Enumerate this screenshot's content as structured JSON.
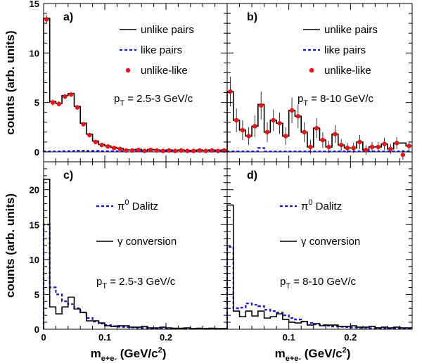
{
  "chart_data": [
    {
      "id": "a",
      "type": "line",
      "panel_label": "a)",
      "pt_label": {
        "main": "p",
        "sub": "T",
        "rest": " = 2.5-3 GeV/c"
      },
      "xlim": [
        0,
        0.3
      ],
      "ylim": [
        -1,
        15
      ],
      "ylabel": "counts (arb. units)",
      "yticks": [
        0,
        5,
        10,
        15
      ],
      "legend": [
        {
          "label": "unlike pairs",
          "style": "solid-black"
        },
        {
          "label": "like pairs",
          "style": "dashed-blue"
        },
        {
          "label": "unlike-like",
          "style": "marker-red"
        }
      ],
      "series": [
        {
          "name": "unlike pairs",
          "style": "solid-black",
          "bin_width": 0.01,
          "x": [
            0.0,
            0.01,
            0.02,
            0.03,
            0.04,
            0.05,
            0.06,
            0.07,
            0.08,
            0.09,
            0.1,
            0.11,
            0.12,
            0.13,
            0.14,
            0.15,
            0.16,
            0.17,
            0.18,
            0.19,
            0.2,
            0.21,
            0.22,
            0.23,
            0.24,
            0.25,
            0.26,
            0.27,
            0.28,
            0.29
          ],
          "y": [
            13.5,
            5.1,
            4.9,
            5.7,
            5.9,
            4.6,
            2.9,
            1.8,
            1.1,
            0.75,
            0.6,
            0.45,
            0.35,
            0.2,
            0.2,
            0.25,
            0.15,
            0.25,
            0.2,
            0.15,
            0.2,
            0.15,
            0.2,
            0.15,
            0.15,
            0.2,
            0.15,
            0.2,
            0.15,
            0.2
          ]
        },
        {
          "name": "like pairs",
          "style": "dashed-blue",
          "bin_width": 0.01,
          "x": [
            0.0,
            0.01,
            0.02,
            0.03,
            0.04,
            0.05,
            0.06,
            0.07,
            0.08,
            0.09,
            0.1,
            0.11,
            0.12,
            0.13,
            0.14,
            0.15,
            0.16,
            0.17,
            0.18,
            0.19,
            0.2,
            0.21,
            0.22,
            0.23,
            0.24,
            0.25,
            0.26,
            0.27,
            0.28,
            0.29
          ],
          "y": [
            0.05,
            0.05,
            0.05,
            0.08,
            0.08,
            0.12,
            0.12,
            0.1,
            0.1,
            0.08,
            0.08,
            0.08,
            0.06,
            0.06,
            0.05,
            0.05,
            0.05,
            0.05,
            0.05,
            0.05,
            0.05,
            0.05,
            0.05,
            0.05,
            0.05,
            0.05,
            0.05,
            0.05,
            0.05,
            0.05
          ]
        },
        {
          "name": "unlike-like",
          "style": "marker-red",
          "x": [
            0.005,
            0.015,
            0.025,
            0.035,
            0.045,
            0.055,
            0.065,
            0.075,
            0.085,
            0.095,
            0.105,
            0.115,
            0.125,
            0.135,
            0.145,
            0.155,
            0.165,
            0.175,
            0.185,
            0.195,
            0.205,
            0.215,
            0.225,
            0.235,
            0.245,
            0.255,
            0.265,
            0.275,
            0.285,
            0.295
          ],
          "y": [
            13.4,
            5.0,
            4.85,
            5.6,
            5.8,
            4.5,
            2.8,
            1.7,
            1.0,
            0.7,
            0.55,
            0.4,
            0.3,
            0.15,
            0.15,
            0.2,
            0.1,
            0.2,
            0.15,
            0.1,
            0.15,
            0.1,
            0.15,
            0.1,
            0.1,
            0.15,
            0.1,
            0.15,
            0.1,
            0.15
          ],
          "yerr": [
            0.4,
            0.3,
            0.25,
            0.25,
            0.25,
            0.25,
            0.2,
            0.2,
            0.15,
            0.12,
            0.12,
            0.1,
            0.1,
            0.1,
            0.1,
            0.1,
            0.1,
            0.1,
            0.1,
            0.1,
            0.1,
            0.1,
            0.1,
            0.1,
            0.1,
            0.1,
            0.1,
            0.1,
            0.1,
            0.1
          ]
        }
      ]
    },
    {
      "id": "b",
      "type": "line",
      "panel_label": "b)",
      "pt_label": {
        "main": "p",
        "sub": "T",
        "rest": " = 8-10 GeV/c"
      },
      "xlim": [
        0,
        0.3
      ],
      "ylim": [
        -1,
        15
      ],
      "legend": [
        {
          "label": "unlike pairs",
          "style": "solid-black"
        },
        {
          "label": "like pairs",
          "style": "dashed-blue"
        },
        {
          "label": "unlike-like",
          "style": "marker-red"
        }
      ],
      "series": [
        {
          "name": "unlike pairs",
          "style": "solid-black",
          "bin_width": 0.01,
          "x": [
            0.0,
            0.01,
            0.02,
            0.03,
            0.04,
            0.05,
            0.06,
            0.07,
            0.08,
            0.09,
            0.1,
            0.11,
            0.12,
            0.13,
            0.14,
            0.15,
            0.16,
            0.17,
            0.18,
            0.19,
            0.2,
            0.21,
            0.22,
            0.23,
            0.24,
            0.25,
            0.26,
            0.27,
            0.28,
            0.29
          ],
          "y": [
            6.1,
            3.2,
            2.2,
            1.6,
            2.6,
            4.8,
            2.0,
            3.2,
            2.9,
            1.6,
            4.2,
            3.6,
            2.0,
            0.5,
            2.4,
            1.2,
            0.5,
            1.8,
            0.7,
            0.4,
            0.4,
            1.0,
            0.2,
            0.5,
            0.5,
            0.8,
            0.3,
            0.9,
            0.9,
            0.6
          ]
        },
        {
          "name": "like pairs",
          "style": "dashed-blue",
          "bin_width": 0.01,
          "x": [
            0.0,
            0.01,
            0.02,
            0.03,
            0.04,
            0.05,
            0.06,
            0.07,
            0.08,
            0.09,
            0.1,
            0.11,
            0.12,
            0.13,
            0.14,
            0.15,
            0.16,
            0.17,
            0.18,
            0.19,
            0.2,
            0.21,
            0.22,
            0.23,
            0.24,
            0.25,
            0.26,
            0.27,
            0.28,
            0.29
          ],
          "y": [
            0.05,
            0.05,
            0.05,
            0.05,
            0.05,
            0.4,
            0.05,
            0.05,
            0.05,
            0.05,
            0.05,
            0.05,
            0.05,
            0.05,
            0.05,
            0.05,
            0.05,
            0.05,
            0.05,
            0.05,
            0.05,
            0.05,
            0.05,
            0.05,
            0.05,
            0.05,
            0.05,
            0.05,
            0.05,
            0.05
          ]
        },
        {
          "name": "unlike-like",
          "style": "marker-red",
          "x": [
            0.005,
            0.015,
            0.025,
            0.035,
            0.045,
            0.055,
            0.065,
            0.075,
            0.085,
            0.095,
            0.105,
            0.115,
            0.125,
            0.135,
            0.145,
            0.155,
            0.165,
            0.175,
            0.185,
            0.195,
            0.205,
            0.215,
            0.225,
            0.235,
            0.245,
            0.255,
            0.265,
            0.275,
            0.285,
            0.295
          ],
          "y": [
            6.1,
            3.2,
            2.2,
            1.6,
            2.6,
            4.7,
            2.0,
            3.2,
            2.9,
            1.6,
            4.2,
            3.6,
            2.0,
            0.5,
            2.4,
            1.2,
            0.5,
            1.8,
            0.7,
            0.4,
            0.4,
            1.0,
            0.2,
            0.5,
            0.5,
            0.8,
            0.3,
            0.9,
            -0.3,
            0.6
          ],
          "yerr": [
            1.5,
            1.2,
            1.0,
            0.9,
            1.1,
            1.4,
            1.0,
            1.1,
            1.1,
            0.9,
            1.3,
            1.2,
            1.0,
            0.7,
            1.0,
            0.8,
            0.6,
            0.9,
            0.6,
            0.5,
            0.5,
            0.7,
            0.5,
            0.5,
            0.5,
            0.6,
            0.5,
            0.6,
            0.5,
            0.5
          ]
        }
      ]
    },
    {
      "id": "c",
      "type": "line",
      "panel_label": "c)",
      "pt_label": {
        "main": "p",
        "sub": "T",
        "rest": " = 2.5-3 GeV/c"
      },
      "xlim": [
        0,
        0.3
      ],
      "ylim": [
        0,
        24
      ],
      "ylabel": "counts (arb. units)",
      "yticks": [
        0,
        5,
        10,
        15,
        20
      ],
      "xticks": [
        0,
        0.1,
        0.2
      ],
      "xlabel": {
        "main": "m",
        "sub": "e+e-",
        "rest": " (GeV/c",
        "sup": "2",
        "end": ")"
      },
      "legend": [
        {
          "label": "Dalitz",
          "prefix": "π",
          "prefix_sup": "0",
          "style": "dashed-blue"
        },
        {
          "label": "conversion",
          "prefix": "γ",
          "style": "solid-black"
        }
      ],
      "series": [
        {
          "name": "Dalitz",
          "style": "dashed-blue",
          "bin_width": 0.01,
          "x": [
            0.0,
            0.01,
            0.02,
            0.03,
            0.04,
            0.05,
            0.06,
            0.07,
            0.08,
            0.09,
            0.1,
            0.11,
            0.12,
            0.13,
            0.14,
            0.15,
            0.16,
            0.17,
            0.18,
            0.19,
            0.2,
            0.21,
            0.22,
            0.23,
            0.24,
            0.25,
            0.26,
            0.27,
            0.28,
            0.29
          ],
          "y": [
            15.0,
            6.0,
            5.0,
            4.0,
            3.6,
            3.0,
            2.4,
            1.6,
            1.1,
            0.8,
            0.6,
            0.45,
            0.35,
            0.3,
            0.25,
            0.2,
            0.18,
            0.15,
            0.12,
            0.1,
            0.1,
            0.08,
            0.08,
            0.07,
            0.06,
            0.06,
            0.05,
            0.05,
            0.05,
            0.05
          ]
        },
        {
          "name": "conversion",
          "style": "solid-black",
          "bin_width": 0.01,
          "x": [
            0.0,
            0.01,
            0.02,
            0.03,
            0.04,
            0.05,
            0.06,
            0.07,
            0.08,
            0.09,
            0.1,
            0.11,
            0.12,
            0.13,
            0.14,
            0.15,
            0.16,
            0.17,
            0.18,
            0.19,
            0.2,
            0.21,
            0.22,
            0.23,
            0.24,
            0.25,
            0.26,
            0.27,
            0.28,
            0.29
          ],
          "y": [
            21.5,
            3.2,
            2.2,
            3.2,
            4.6,
            2.9,
            2.4,
            1.2,
            1.2,
            0.9,
            0.5,
            0.4,
            0.5,
            0.5,
            0.3,
            0.3,
            0.4,
            0.2,
            0.2,
            0.3,
            0.2,
            0.15,
            0.15,
            0.2,
            0.1,
            0.15,
            0.1,
            0.15,
            0.1,
            0.1
          ]
        }
      ]
    },
    {
      "id": "d",
      "type": "line",
      "panel_label": "d)",
      "pt_label": {
        "main": "p",
        "sub": "T",
        "rest": " = 8-10 GeV/c"
      },
      "xlim": [
        0,
        0.3
      ],
      "ylim": [
        0,
        24
      ],
      "xticks": [
        0.1,
        0.2
      ],
      "xlabel": {
        "main": "m",
        "sub": "e+e-",
        "rest": " (GeV/c",
        "sup": "2",
        "end": ")"
      },
      "legend": [
        {
          "label": "Dalitz",
          "prefix": "π",
          "prefix_sup": "0",
          "style": "dashed-blue"
        },
        {
          "label": "conversion",
          "prefix": "γ",
          "style": "solid-black"
        }
      ],
      "series": [
        {
          "name": "Dalitz",
          "style": "dashed-blue",
          "bin_width": 0.01,
          "x": [
            0.0,
            0.01,
            0.02,
            0.03,
            0.04,
            0.05,
            0.06,
            0.07,
            0.08,
            0.09,
            0.1,
            0.11,
            0.12,
            0.13,
            0.14,
            0.15,
            0.16,
            0.17,
            0.18,
            0.19,
            0.2,
            0.21,
            0.22,
            0.23,
            0.24,
            0.25,
            0.26,
            0.27,
            0.28,
            0.29
          ],
          "y": [
            11.8,
            3.0,
            3.1,
            3.7,
            3.5,
            3.3,
            2.8,
            2.6,
            2.4,
            2.0,
            1.6,
            1.4,
            1.1,
            0.9,
            0.7,
            0.6,
            0.5,
            0.4,
            0.35,
            0.3,
            0.25,
            0.2,
            0.2,
            0.15,
            0.15,
            0.12,
            0.1,
            0.1,
            0.1,
            0.1
          ]
        },
        {
          "name": "conversion",
          "style": "solid-black",
          "bin_width": 0.01,
          "x": [
            0.0,
            0.01,
            0.02,
            0.03,
            0.04,
            0.05,
            0.06,
            0.07,
            0.08,
            0.09,
            0.1,
            0.11,
            0.12,
            0.13,
            0.14,
            0.15,
            0.16,
            0.17,
            0.18,
            0.19,
            0.2,
            0.21,
            0.22,
            0.23,
            0.24,
            0.25,
            0.26,
            0.27,
            0.28,
            0.29
          ],
          "y": [
            17.8,
            2.6,
            1.8,
            2.6,
            1.9,
            2.6,
            1.6,
            1.8,
            2.2,
            1.4,
            1.0,
            0.9,
            1.1,
            0.6,
            0.8,
            0.5,
            0.6,
            0.6,
            0.4,
            0.4,
            0.5,
            0.3,
            0.3,
            0.4,
            0.2,
            0.3,
            0.2,
            0.3,
            0.2,
            0.2
          ]
        }
      ]
    }
  ]
}
